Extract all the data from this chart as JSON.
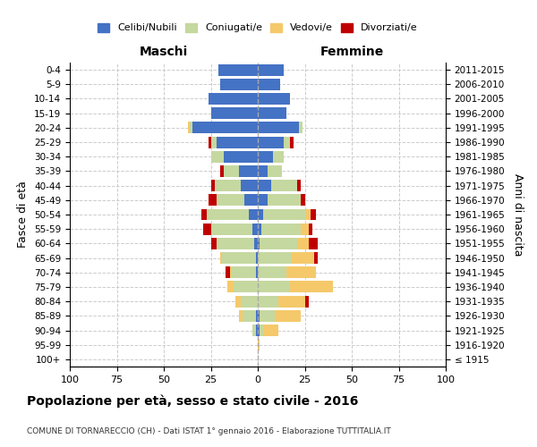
{
  "age_groups": [
    "100+",
    "95-99",
    "90-94",
    "85-89",
    "80-84",
    "75-79",
    "70-74",
    "65-69",
    "60-64",
    "55-59",
    "50-54",
    "45-49",
    "40-44",
    "35-39",
    "30-34",
    "25-29",
    "20-24",
    "15-19",
    "10-14",
    "5-9",
    "0-4"
  ],
  "birth_years": [
    "≤ 1915",
    "1916-1920",
    "1921-1925",
    "1926-1930",
    "1931-1935",
    "1936-1940",
    "1941-1945",
    "1946-1950",
    "1951-1955",
    "1956-1960",
    "1961-1965",
    "1966-1970",
    "1971-1975",
    "1976-1980",
    "1981-1985",
    "1986-1990",
    "1991-1995",
    "1996-2000",
    "2001-2005",
    "2006-2010",
    "2011-2015"
  ],
  "males": {
    "celibi": [
      0,
      0,
      1,
      1,
      0,
      0,
      1,
      1,
      2,
      3,
      5,
      7,
      9,
      10,
      18,
      22,
      35,
      25,
      26,
      20,
      21
    ],
    "coniugati": [
      0,
      0,
      2,
      7,
      9,
      13,
      13,
      18,
      20,
      22,
      22,
      15,
      14,
      8,
      7,
      3,
      1,
      0,
      0,
      0,
      0
    ],
    "vedovi": [
      0,
      0,
      0,
      2,
      3,
      3,
      1,
      1,
      0,
      0,
      0,
      0,
      0,
      0,
      0,
      0,
      1,
      0,
      0,
      0,
      0
    ],
    "divorziati": [
      0,
      0,
      0,
      0,
      0,
      0,
      2,
      0,
      3,
      4,
      3,
      4,
      2,
      2,
      0,
      1,
      0,
      0,
      0,
      0,
      0
    ]
  },
  "females": {
    "nubili": [
      0,
      0,
      1,
      1,
      0,
      0,
      0,
      0,
      1,
      2,
      3,
      5,
      7,
      5,
      8,
      14,
      22,
      15,
      17,
      12,
      14
    ],
    "coniugate": [
      0,
      0,
      2,
      8,
      11,
      17,
      15,
      18,
      20,
      21,
      22,
      18,
      14,
      8,
      6,
      3,
      2,
      0,
      0,
      0,
      0
    ],
    "vedove": [
      0,
      1,
      8,
      14,
      14,
      23,
      16,
      12,
      6,
      4,
      3,
      0,
      0,
      0,
      0,
      0,
      0,
      0,
      0,
      0,
      0
    ],
    "divorziate": [
      0,
      0,
      0,
      0,
      2,
      0,
      0,
      2,
      5,
      2,
      3,
      2,
      2,
      0,
      0,
      2,
      0,
      0,
      0,
      0,
      0
    ]
  },
  "colors": {
    "celibi": "#4472c4",
    "coniugati": "#c5d8a0",
    "vedovi": "#f5c96a",
    "divorziati": "#c00000"
  },
  "title": "Popolazione per età, sesso e stato civile - 2016",
  "subtitle": "COMUNE DI TORNARECCIO (CH) - Dati ISTAT 1° gennaio 2016 - Elaborazione TUTTITALIA.IT",
  "xlabel_left": "Maschi",
  "xlabel_right": "Femmine",
  "ylabel_left": "Fasce di età",
  "ylabel_right": "Anni di nascita",
  "xlim": 100,
  "legend_labels": [
    "Celibi/Nubili",
    "Coniugati/e",
    "Vedovi/e",
    "Divorziati/e"
  ],
  "background_color": "#ffffff"
}
